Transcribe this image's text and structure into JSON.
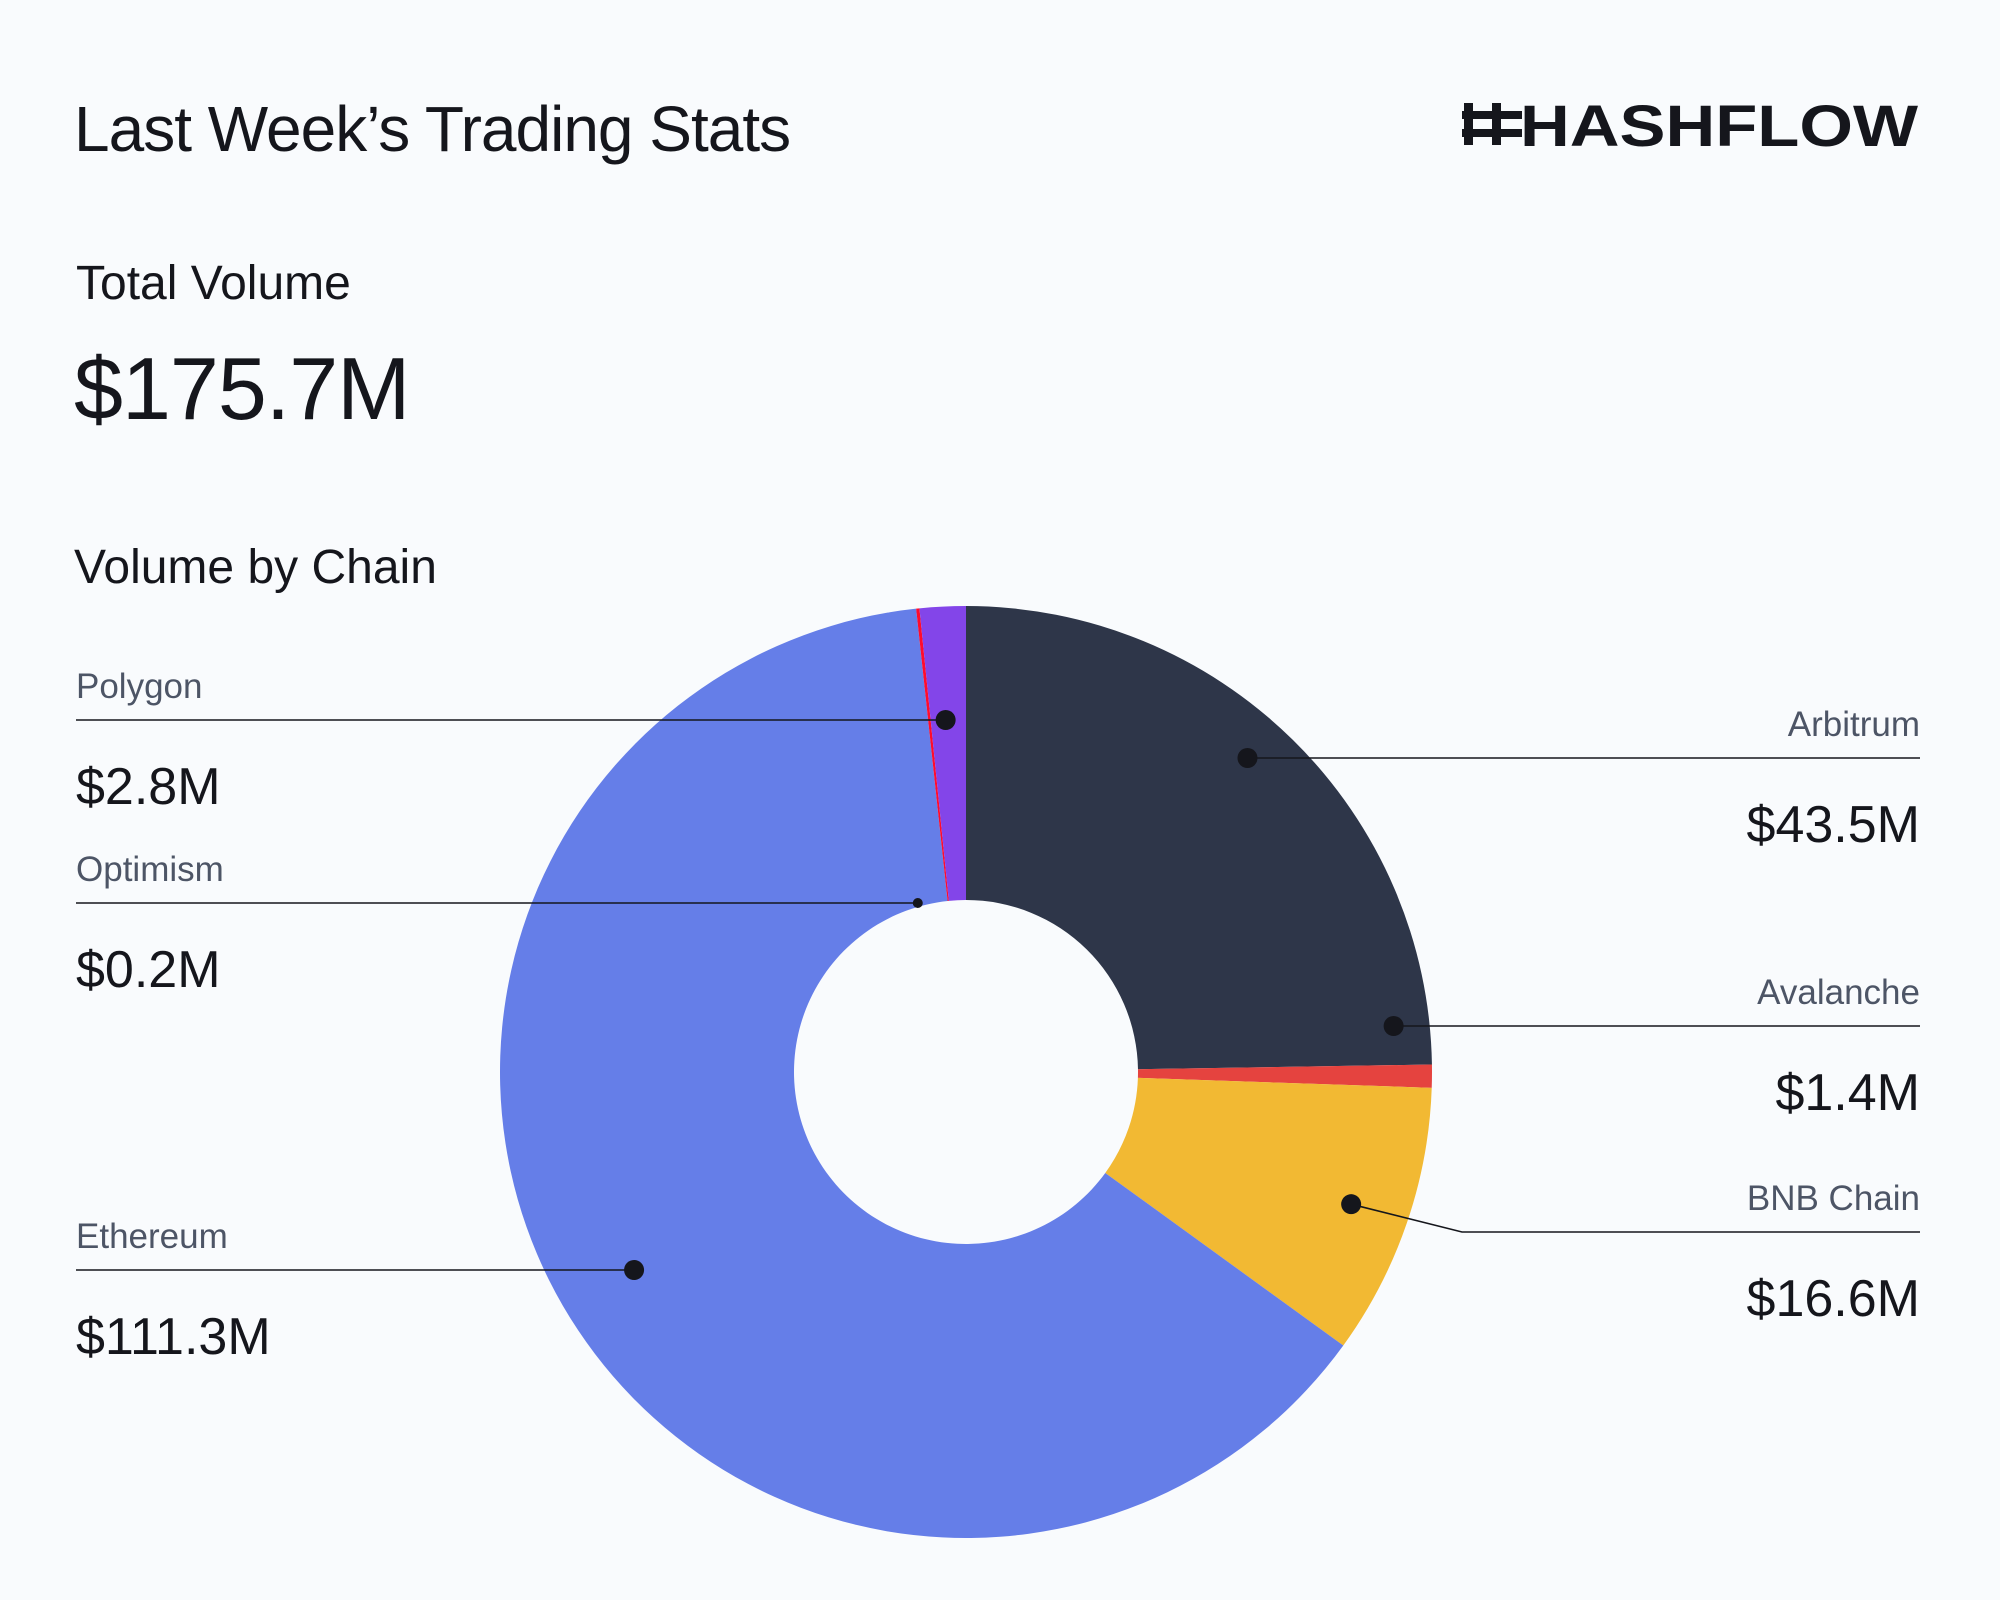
{
  "header": {
    "title": "Last Week’s Trading Stats",
    "brand": "HASHFLOW"
  },
  "total": {
    "label": "Total Volume",
    "value": "$175.7M"
  },
  "chart_data": {
    "type": "pie",
    "title": "Volume by Chain",
    "unit": "USD millions",
    "donut": true,
    "start": "12 o'clock, clockwise",
    "categories": [
      "Arbitrum",
      "Avalanche",
      "BNB Chain",
      "Ethereum",
      "Optimism",
      "Polygon"
    ],
    "values": [
      43.5,
      1.4,
      16.6,
      111.3,
      0.2,
      2.8
    ],
    "value_labels": [
      "$43.5M",
      "$1.4M",
      "$16.6M",
      "$111.3M",
      "$0.2M",
      "$2.8M"
    ],
    "colors": [
      "#2e3649",
      "#e5433f",
      "#f2b933",
      "#657ee8",
      "#ff0b2e",
      "#8345e9"
    ],
    "label_sides": [
      "right",
      "right",
      "right",
      "left",
      "left",
      "left"
    ]
  }
}
